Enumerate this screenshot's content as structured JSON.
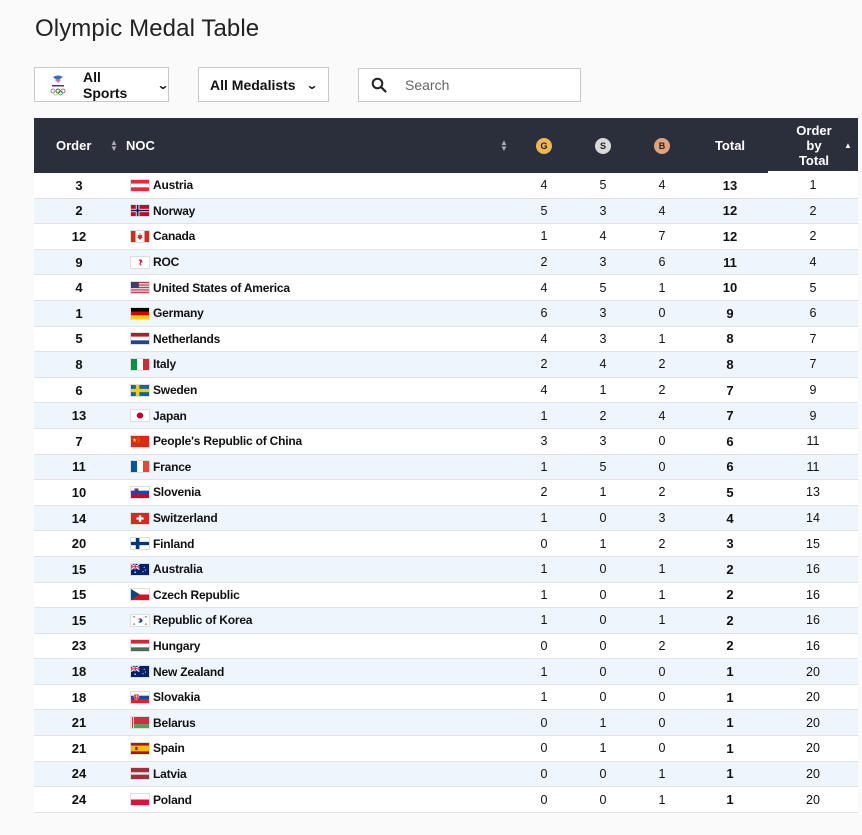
{
  "page": {
    "title": "Olympic Medal Table"
  },
  "filters": {
    "sports_label": "All Sports",
    "medalists_label": "All Medalists"
  },
  "search": {
    "placeholder": "Search",
    "value": ""
  },
  "colors": {
    "gold": "#f0b653",
    "silver": "#d9d9d9",
    "bronze": "#e0a27a",
    "header_bg": "#2a2f3b",
    "row_alt": "#eef5fc"
  },
  "table": {
    "headers": {
      "order": "Order",
      "noc": "NOC",
      "gold": "G",
      "silver": "S",
      "bronze": "B",
      "total": "Total",
      "order_by_total": [
        "Order",
        "by",
        "Total"
      ]
    },
    "rows": [
      {
        "order": "3",
        "noc": "Austria",
        "flag": "AUT",
        "g": "4",
        "s": "5",
        "b": "4",
        "total": "13",
        "rank": "1"
      },
      {
        "order": "2",
        "noc": "Norway",
        "flag": "NOR",
        "g": "5",
        "s": "3",
        "b": "4",
        "total": "12",
        "rank": "2"
      },
      {
        "order": "12",
        "noc": "Canada",
        "flag": "CAN",
        "g": "1",
        "s": "4",
        "b": "7",
        "total": "12",
        "rank": "2"
      },
      {
        "order": "9",
        "noc": "ROC",
        "flag": "ROC",
        "g": "2",
        "s": "3",
        "b": "6",
        "total": "11",
        "rank": "4"
      },
      {
        "order": "4",
        "noc": "United States of America",
        "flag": "USA",
        "g": "4",
        "s": "5",
        "b": "1",
        "total": "10",
        "rank": "5"
      },
      {
        "order": "1",
        "noc": "Germany",
        "flag": "GER",
        "g": "6",
        "s": "3",
        "b": "0",
        "total": "9",
        "rank": "6"
      },
      {
        "order": "5",
        "noc": "Netherlands",
        "flag": "NED",
        "g": "4",
        "s": "3",
        "b": "1",
        "total": "8",
        "rank": "7"
      },
      {
        "order": "8",
        "noc": "Italy",
        "flag": "ITA",
        "g": "2",
        "s": "4",
        "b": "2",
        "total": "8",
        "rank": "7"
      },
      {
        "order": "6",
        "noc": "Sweden",
        "flag": "SWE",
        "g": "4",
        "s": "1",
        "b": "2",
        "total": "7",
        "rank": "9"
      },
      {
        "order": "13",
        "noc": "Japan",
        "flag": "JPN",
        "g": "1",
        "s": "2",
        "b": "4",
        "total": "7",
        "rank": "9"
      },
      {
        "order": "7",
        "noc": "People's Republic of China",
        "flag": "CHN",
        "g": "3",
        "s": "3",
        "b": "0",
        "total": "6",
        "rank": "11"
      },
      {
        "order": "11",
        "noc": "France",
        "flag": "FRA",
        "g": "1",
        "s": "5",
        "b": "0",
        "total": "6",
        "rank": "11"
      },
      {
        "order": "10",
        "noc": "Slovenia",
        "flag": "SLO",
        "g": "2",
        "s": "1",
        "b": "2",
        "total": "5",
        "rank": "13"
      },
      {
        "order": "14",
        "noc": "Switzerland",
        "flag": "SUI",
        "g": "1",
        "s": "0",
        "b": "3",
        "total": "4",
        "rank": "14"
      },
      {
        "order": "20",
        "noc": "Finland",
        "flag": "FIN",
        "g": "0",
        "s": "1",
        "b": "2",
        "total": "3",
        "rank": "15"
      },
      {
        "order": "15",
        "noc": "Australia",
        "flag": "AUS",
        "g": "1",
        "s": "0",
        "b": "1",
        "total": "2",
        "rank": "16"
      },
      {
        "order": "15",
        "noc": "Czech Republic",
        "flag": "CZE",
        "g": "1",
        "s": "0",
        "b": "1",
        "total": "2",
        "rank": "16"
      },
      {
        "order": "15",
        "noc": "Republic of Korea",
        "flag": "KOR",
        "g": "1",
        "s": "0",
        "b": "1",
        "total": "2",
        "rank": "16"
      },
      {
        "order": "23",
        "noc": "Hungary",
        "flag": "HUN",
        "g": "0",
        "s": "0",
        "b": "2",
        "total": "2",
        "rank": "16"
      },
      {
        "order": "18",
        "noc": "New Zealand",
        "flag": "NZL",
        "g": "1",
        "s": "0",
        "b": "0",
        "total": "1",
        "rank": "20"
      },
      {
        "order": "18",
        "noc": "Slovakia",
        "flag": "SVK",
        "g": "1",
        "s": "0",
        "b": "0",
        "total": "1",
        "rank": "20"
      },
      {
        "order": "21",
        "noc": "Belarus",
        "flag": "BLR",
        "g": "0",
        "s": "1",
        "b": "0",
        "total": "1",
        "rank": "20"
      },
      {
        "order": "21",
        "noc": "Spain",
        "flag": "ESP",
        "g": "0",
        "s": "1",
        "b": "0",
        "total": "1",
        "rank": "20"
      },
      {
        "order": "24",
        "noc": "Latvia",
        "flag": "LAT",
        "g": "0",
        "s": "0",
        "b": "1",
        "total": "1",
        "rank": "20"
      },
      {
        "order": "24",
        "noc": "Poland",
        "flag": "POL",
        "g": "0",
        "s": "0",
        "b": "1",
        "total": "1",
        "rank": "20"
      }
    ]
  }
}
